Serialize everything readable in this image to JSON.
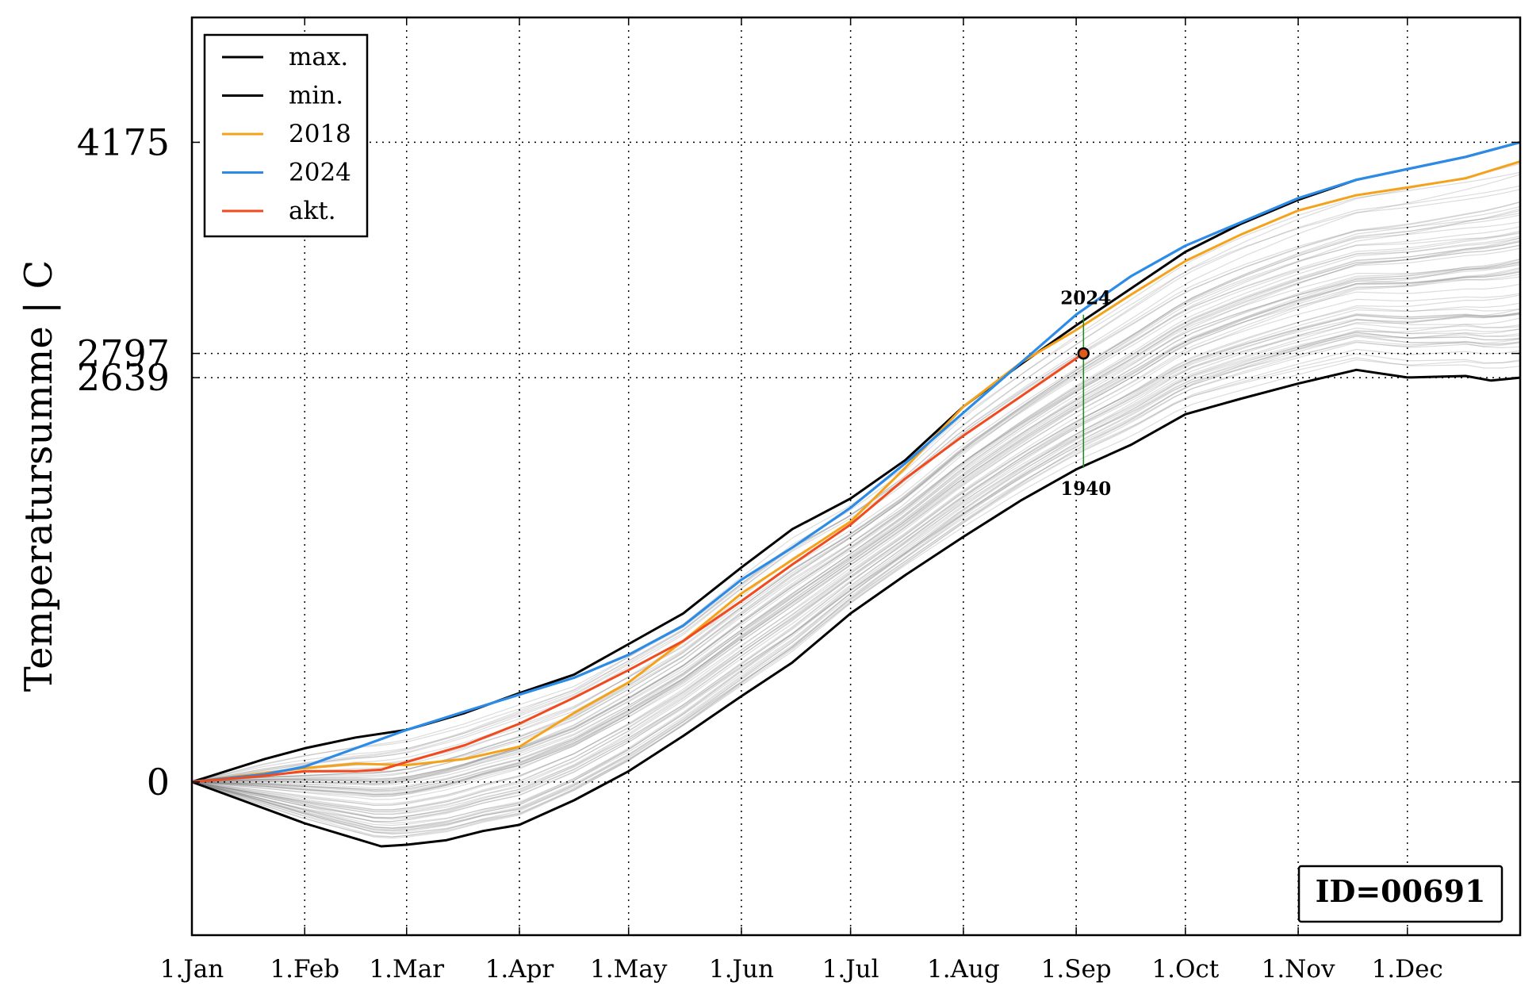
{
  "chart_data": {
    "type": "line",
    "ylabel": "Temperatursumme | C",
    "x_ticks": [
      "1.Jan",
      "1.Feb",
      "1.Mar",
      "1.Apr",
      "1.May",
      "1.Jun",
      "1.Jul",
      "1.Aug",
      "1.Sep",
      "1.Oct",
      "1.Nov",
      "1.Dec"
    ],
    "x_tick_days": [
      0,
      31,
      59,
      90,
      120,
      151,
      181,
      212,
      243,
      273,
      304,
      334
    ],
    "xlim": [
      0,
      365
    ],
    "ylim": [
      -1000,
      4990
    ],
    "y_ticks": [
      0,
      2639,
      2797,
      4175
    ],
    "y_tick_labels": [
      "0",
      "2639",
      "2797",
      "4175"
    ],
    "grid": true,
    "legend_position": "top-left",
    "legend": [
      {
        "label": "max.",
        "color": "#000000"
      },
      {
        "label": "min.",
        "color": "#000000"
      },
      {
        "label": "2018",
        "color": "#f5a21b"
      },
      {
        "label": "2024",
        "color": "#2b8be6"
      },
      {
        "label": "akt.",
        "color": "#f04a1e"
      }
    ],
    "series": [
      {
        "name": "max.",
        "color": "#000000",
        "x": [
          0,
          20,
          31,
          45,
          59,
          75,
          90,
          105,
          120,
          135,
          151,
          165,
          181,
          196,
          212,
          228,
          243,
          258,
          273,
          288,
          304,
          320,
          334,
          350,
          365
        ],
        "y": [
          0,
          150,
          220,
          290,
          340,
          450,
          580,
          700,
          900,
          1100,
          1400,
          1650,
          1850,
          2100,
          2450,
          2730,
          2980,
          3220,
          3460,
          3640,
          3800,
          3930,
          4000,
          4080,
          4175
        ]
      },
      {
        "name": "min.",
        "color": "#000000",
        "x": [
          0,
          15,
          31,
          45,
          52,
          59,
          70,
          80,
          90,
          105,
          120,
          135,
          151,
          165,
          181,
          196,
          212,
          228,
          243,
          258,
          273,
          288,
          304,
          320,
          334,
          350,
          357,
          365
        ],
        "y": [
          0,
          -130,
          -270,
          -370,
          -420,
          -410,
          -380,
          -320,
          -280,
          -120,
          70,
          300,
          560,
          780,
          1100,
          1350,
          1600,
          1840,
          2040,
          2200,
          2400,
          2500,
          2600,
          2690,
          2640,
          2650,
          2620,
          2639
        ]
      },
      {
        "name": "2018",
        "color": "#f5a21b",
        "x": [
          0,
          31,
          45,
          59,
          75,
          90,
          105,
          120,
          135,
          151,
          165,
          181,
          196,
          212,
          228,
          243,
          258,
          273,
          288,
          304,
          320,
          334,
          350,
          365
        ],
        "y": [
          0,
          90,
          120,
          110,
          150,
          230,
          450,
          650,
          920,
          1230,
          1450,
          1700,
          2050,
          2450,
          2740,
          2950,
          3180,
          3400,
          3570,
          3730,
          3830,
          3880,
          3940,
          4050
        ]
      },
      {
        "name": "2024",
        "color": "#2b8be6",
        "x": [
          0,
          20,
          31,
          45,
          59,
          75,
          90,
          105,
          120,
          135,
          151,
          165,
          181,
          196,
          212,
          228,
          243,
          258,
          273,
          288,
          304,
          320,
          334,
          350,
          365
        ],
        "y": [
          0,
          50,
          100,
          220,
          340,
          460,
          570,
          680,
          830,
          1020,
          1320,
          1530,
          1790,
          2080,
          2410,
          2740,
          3050,
          3300,
          3500,
          3650,
          3810,
          3930,
          4000,
          4080,
          4175
        ]
      },
      {
        "name": "akt.",
        "color": "#f04a1e",
        "x": [
          0,
          20,
          31,
          45,
          52,
          59,
          75,
          90,
          105,
          120,
          135,
          151,
          165,
          181,
          196,
          212,
          228,
          245
        ],
        "y": [
          0,
          40,
          70,
          70,
          80,
          130,
          240,
          380,
          550,
          730,
          920,
          1180,
          1420,
          1680,
          1980,
          2260,
          2520,
          2797
        ]
      }
    ],
    "current_point": {
      "x": 245,
      "y": 2797
    },
    "annotation": {
      "upper_label": "2024",
      "upper_y": 3050,
      "lower_label": "1940",
      "lower_y": 2040
    },
    "id_box": "ID=00691"
  }
}
